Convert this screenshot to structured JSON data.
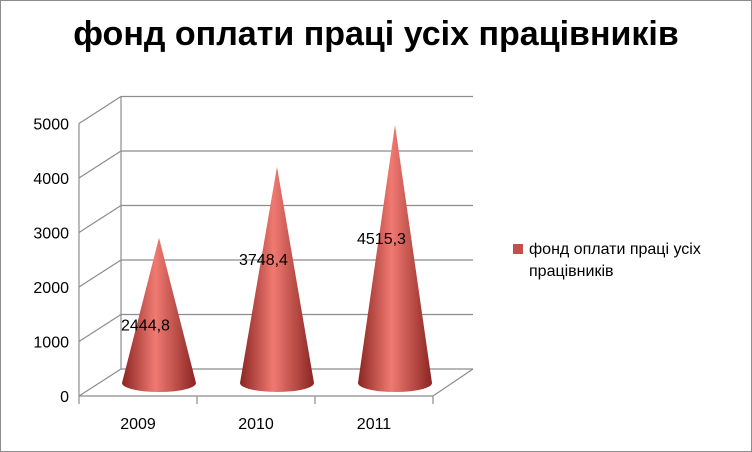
{
  "chart_data": {
    "type": "bar",
    "shape": "cone-3d",
    "title": "фонд оплати праці усіх працівників",
    "categories": [
      "2009",
      "2010",
      "2011"
    ],
    "series": [
      {
        "name": "фонд оплати праці усіх працівників",
        "values": [
          2444.8,
          3748.4,
          4515.3
        ],
        "labels": [
          "2444,8",
          "3748,4",
          "4515,3"
        ]
      }
    ],
    "yticks": [
      "0",
      "1000",
      "2000",
      "3000",
      "4000",
      "5000"
    ],
    "ylim": [
      0,
      5000
    ],
    "grid": true,
    "legend_position": "right",
    "colors": {
      "series": "#c0504d",
      "series_light": "#f07a72",
      "series_dark": "#8b2522",
      "gridline": "#8c8c8c"
    }
  }
}
